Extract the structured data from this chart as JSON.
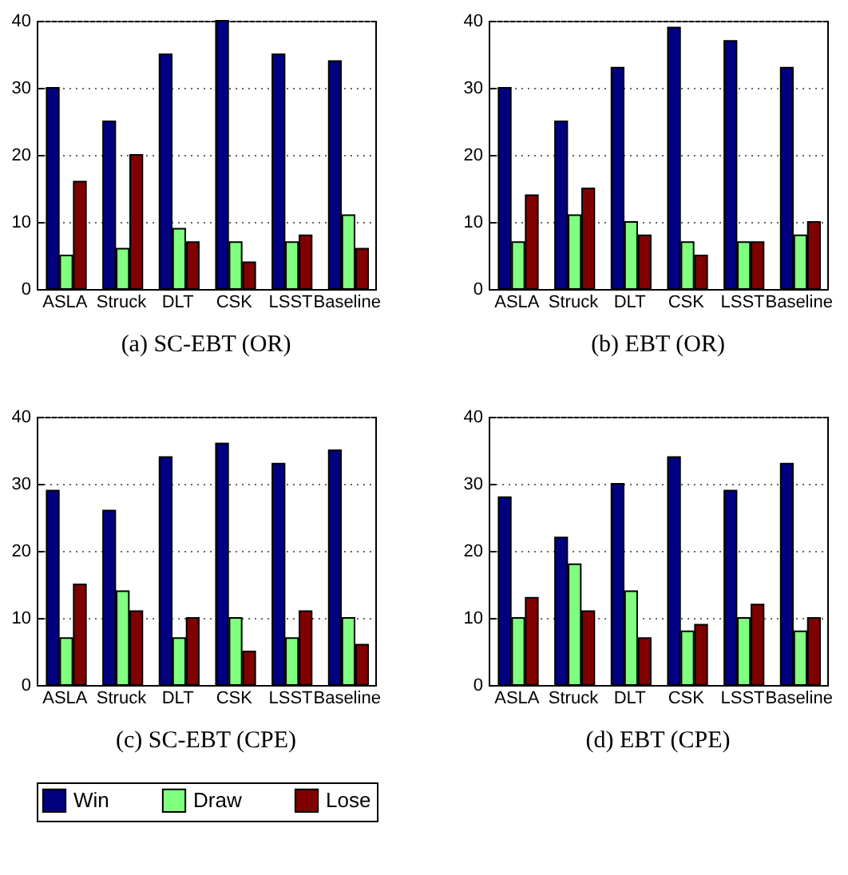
{
  "chart_data": [
    {
      "type": "bar",
      "title": "(a)  SC-EBT (OR)",
      "categories": [
        "ASLA",
        "Struck",
        "DLT",
        "CSK",
        "LSST",
        "Baseline"
      ],
      "ylim": [
        0,
        40
      ],
      "yticks": [
        0,
        10,
        20,
        30,
        40
      ],
      "grid": "y",
      "legend": "bottom",
      "series": [
        {
          "name": "Win",
          "color": "#000080",
          "values": [
            30,
            25,
            35,
            40,
            35,
            34
          ]
        },
        {
          "name": "Draw",
          "color": "#80ff80",
          "values": [
            5,
            6,
            9,
            7,
            7,
            11
          ]
        },
        {
          "name": "Lose",
          "color": "#800000",
          "values": [
            16,
            20,
            7,
            4,
            8,
            6
          ]
        }
      ]
    },
    {
      "type": "bar",
      "title": "(b)  EBT (OR)",
      "categories": [
        "ASLA",
        "Struck",
        "DLT",
        "CSK",
        "LSST",
        "Baseline"
      ],
      "ylim": [
        0,
        40
      ],
      "yticks": [
        0,
        10,
        20,
        30,
        40
      ],
      "grid": "y",
      "legend": "bottom",
      "series": [
        {
          "name": "Win",
          "color": "#000080",
          "values": [
            30,
            25,
            33,
            39,
            37,
            33
          ]
        },
        {
          "name": "Draw",
          "color": "#80ff80",
          "values": [
            7,
            11,
            10,
            7,
            7,
            8
          ]
        },
        {
          "name": "Lose",
          "color": "#800000",
          "values": [
            14,
            15,
            8,
            5,
            7,
            10
          ]
        }
      ]
    },
    {
      "type": "bar",
      "title": "(c)  SC-EBT (CPE)",
      "categories": [
        "ASLA",
        "Struck",
        "DLT",
        "CSK",
        "LSST",
        "Baseline"
      ],
      "ylim": [
        0,
        40
      ],
      "yticks": [
        0,
        10,
        20,
        30,
        40
      ],
      "grid": "y",
      "legend": "bottom",
      "series": [
        {
          "name": "Win",
          "color": "#000080",
          "values": [
            29,
            26,
            34,
            36,
            33,
            35
          ]
        },
        {
          "name": "Draw",
          "color": "#80ff80",
          "values": [
            7,
            14,
            7,
            10,
            7,
            10
          ]
        },
        {
          "name": "Lose",
          "color": "#800000",
          "values": [
            15,
            11,
            10,
            5,
            11,
            6
          ]
        }
      ]
    },
    {
      "type": "bar",
      "title": "(d)  EBT (CPE)",
      "categories": [
        "ASLA",
        "Struck",
        "DLT",
        "CSK",
        "LSST",
        "Baseline"
      ],
      "ylim": [
        0,
        40
      ],
      "yticks": [
        0,
        10,
        20,
        30,
        40
      ],
      "grid": "y",
      "legend": "bottom",
      "series": [
        {
          "name": "Win",
          "color": "#000080",
          "values": [
            28,
            22,
            30,
            34,
            29,
            33
          ]
        },
        {
          "name": "Draw",
          "color": "#80ff80",
          "values": [
            10,
            18,
            14,
            8,
            10,
            8
          ]
        },
        {
          "name": "Lose",
          "color": "#800000",
          "values": [
            13,
            11,
            7,
            9,
            12,
            10
          ]
        }
      ]
    }
  ]
}
